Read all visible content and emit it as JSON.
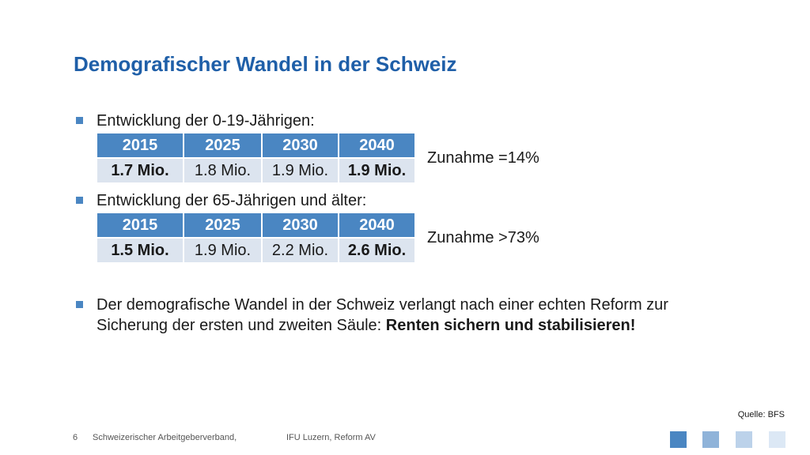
{
  "slide": {
    "title": "Demografischer Wandel in der Schweiz",
    "bullet1": "Entwicklung der 0-19-Jährigen:",
    "bullet2": "Entwicklung der 65-Jährigen und älter:",
    "bullet3_text": "Der demografische Wandel in der Schweiz verlangt nach einer echten Reform zur Sicherung der ersten und zweiten Säule: ",
    "bullet3_bold": "Renten sichern und stabilisieren!"
  },
  "table1": {
    "years": [
      "2015",
      "2025",
      "2030",
      "2040"
    ],
    "values": [
      "1.7 Mio.",
      "1.8 Mio.",
      "1.9 Mio.",
      "1.9 Mio."
    ],
    "note": "Zunahme =14%"
  },
  "table2": {
    "years": [
      "2015",
      "2025",
      "2030",
      "2040"
    ],
    "values": [
      "1.5 Mio.",
      "1.9 Mio.",
      "2.2 Mio.",
      "2.6 Mio."
    ],
    "note": "Zunahme >73%"
  },
  "source": "Quelle: BFS",
  "footer": {
    "page_number": "6",
    "organization": "Schweizerischer Arbeitgeberverband,",
    "event": "IFU Luzern, Reform AV"
  },
  "colors": {
    "title": "#1f5fa8",
    "table_header": "#4a86c2",
    "table_row": "#dce4ef",
    "squares": [
      "#4a86c2",
      "#8fb3d9",
      "#bcd2ea",
      "#dce8f5"
    ]
  }
}
